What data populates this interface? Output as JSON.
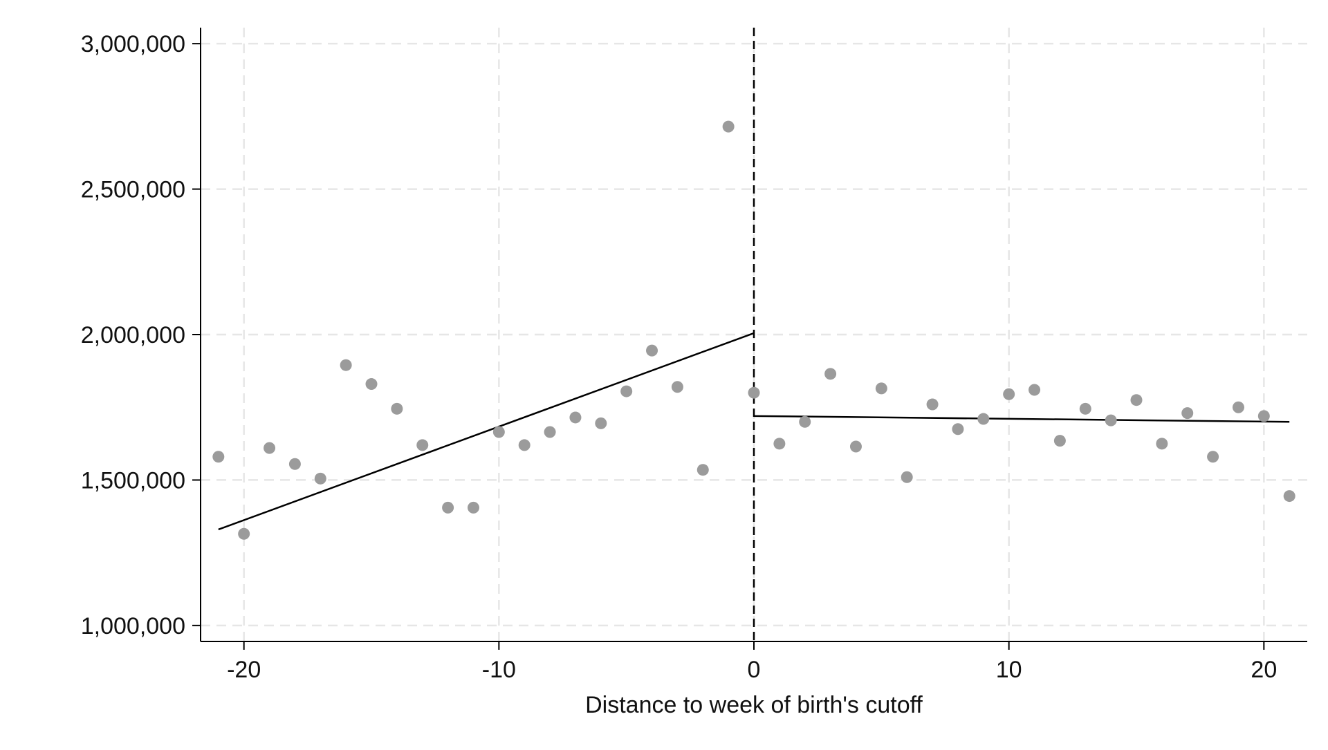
{
  "chart_data": {
    "type": "scatter",
    "title": "",
    "xlabel": "Distance to week of birth's cutoff",
    "ylabel": "",
    "xlim": [
      -21.7,
      21.7
    ],
    "ylim": [
      945000,
      3055000
    ],
    "x_ticks": [
      -20,
      -10,
      0,
      10,
      20
    ],
    "x_tick_labels": [
      "-20",
      "-10",
      "0",
      "10",
      "20"
    ],
    "y_ticks": [
      1000000,
      1500000,
      2000000,
      2500000,
      3000000
    ],
    "y_tick_labels": [
      "1,000,000",
      "1,500,000",
      "2,000,000",
      "2,500,000",
      "3,000,000"
    ],
    "grid": true,
    "cutoff_line_x": 0,
    "points": [
      {
        "x": -21,
        "y": 1580000
      },
      {
        "x": -20,
        "y": 1315000
      },
      {
        "x": -19,
        "y": 1610000
      },
      {
        "x": -18,
        "y": 1555000
      },
      {
        "x": -17,
        "y": 1505000
      },
      {
        "x": -16,
        "y": 1895000
      },
      {
        "x": -15,
        "y": 1830000
      },
      {
        "x": -14,
        "y": 1745000
      },
      {
        "x": -13,
        "y": 1620000
      },
      {
        "x": -12,
        "y": 1405000
      },
      {
        "x": -11,
        "y": 1405000
      },
      {
        "x": -10,
        "y": 1665000
      },
      {
        "x": -9,
        "y": 1620000
      },
      {
        "x": -8,
        "y": 1665000
      },
      {
        "x": -7,
        "y": 1715000
      },
      {
        "x": -6,
        "y": 1695000
      },
      {
        "x": -5,
        "y": 1805000
      },
      {
        "x": -4,
        "y": 1945000
      },
      {
        "x": -3,
        "y": 1820000
      },
      {
        "x": -2,
        "y": 1535000
      },
      {
        "x": -1,
        "y": 2715000
      },
      {
        "x": 0,
        "y": 1800000
      },
      {
        "x": 1,
        "y": 1625000
      },
      {
        "x": 2,
        "y": 1700000
      },
      {
        "x": 3,
        "y": 1865000
      },
      {
        "x": 4,
        "y": 1615000
      },
      {
        "x": 5,
        "y": 1815000
      },
      {
        "x": 6,
        "y": 1510000
      },
      {
        "x": 7,
        "y": 1760000
      },
      {
        "x": 8,
        "y": 1675000
      },
      {
        "x": 9,
        "y": 1710000
      },
      {
        "x": 10,
        "y": 1795000
      },
      {
        "x": 11,
        "y": 1810000
      },
      {
        "x": 12,
        "y": 1635000
      },
      {
        "x": 13,
        "y": 1745000
      },
      {
        "x": 14,
        "y": 1705000
      },
      {
        "x": 15,
        "y": 1775000
      },
      {
        "x": 16,
        "y": 1625000
      },
      {
        "x": 17,
        "y": 1730000
      },
      {
        "x": 18,
        "y": 1580000
      },
      {
        "x": 19,
        "y": 1750000
      },
      {
        "x": 20,
        "y": 1720000
      },
      {
        "x": 21,
        "y": 1445000
      }
    ],
    "fit_lines": [
      {
        "x": [
          -21,
          0
        ],
        "y": [
          1330000,
          2005000
        ]
      },
      {
        "x": [
          0,
          21
        ],
        "y": [
          1720000,
          1700000
        ]
      }
    ],
    "colors": {
      "points": "#9b9b9b",
      "lines": "#000000",
      "grid": "#e6e6e6",
      "axis": "#000000"
    }
  }
}
